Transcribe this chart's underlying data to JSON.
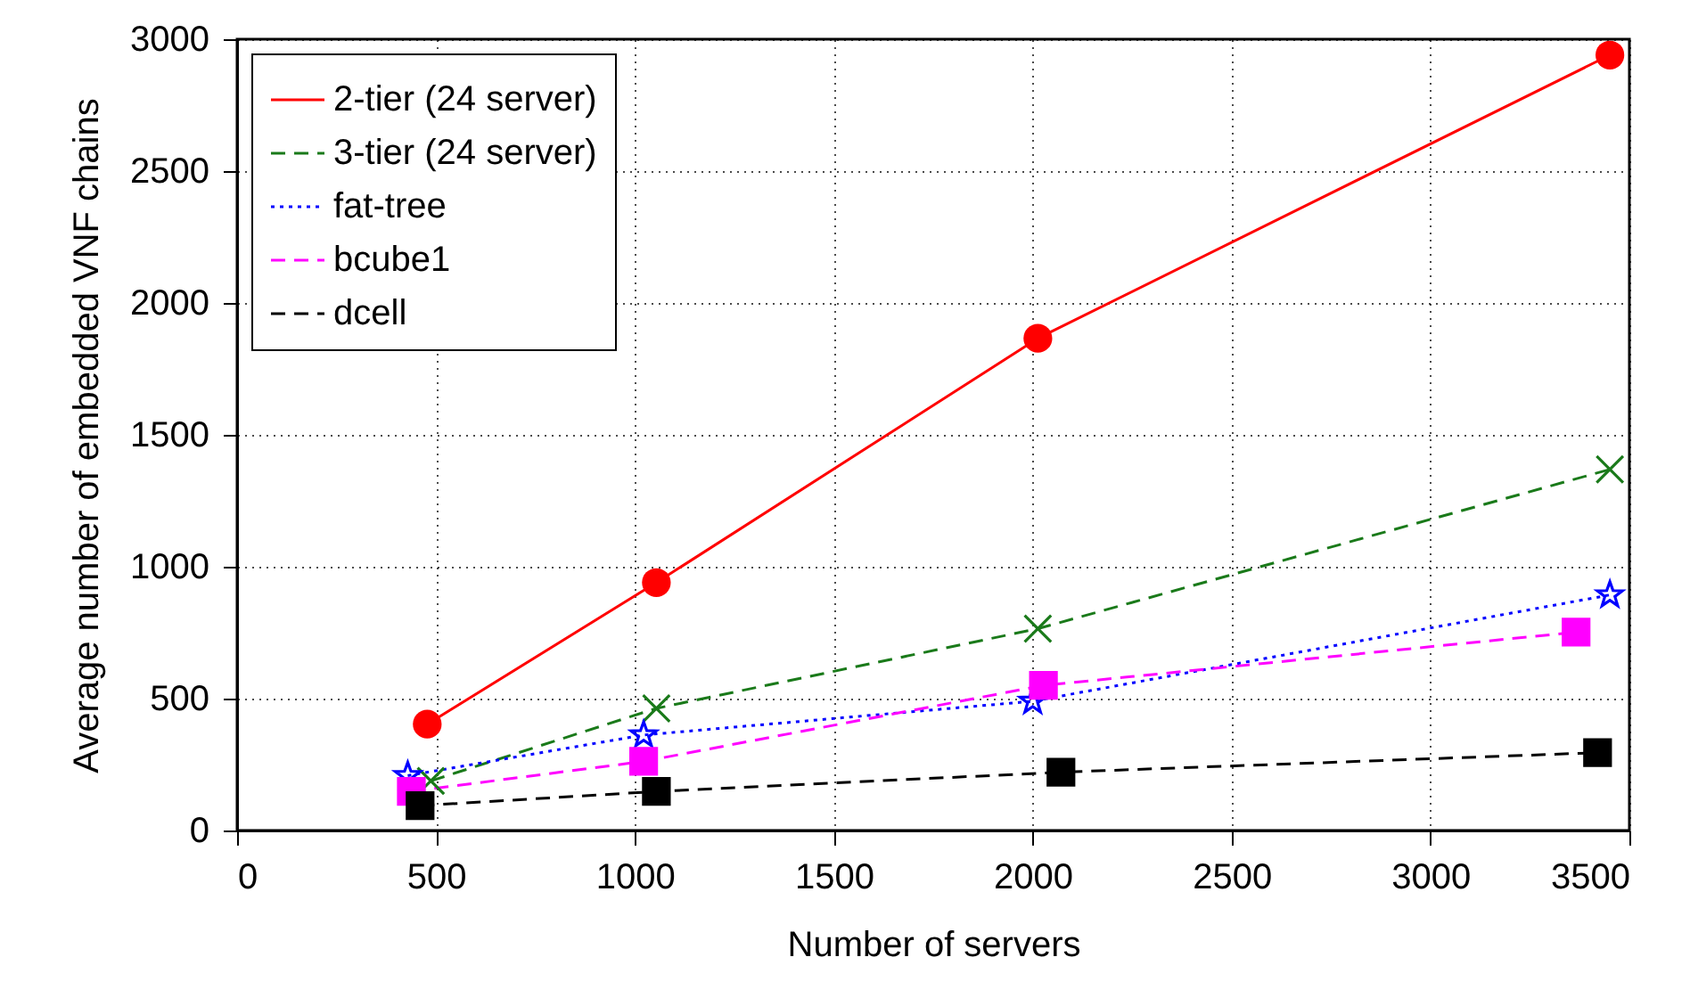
{
  "chart_data": {
    "type": "line",
    "xlabel": "Number of servers",
    "ylabel": "Average number of embedded VNF chains",
    "xlim": [
      0,
      3500
    ],
    "xticks": [
      0,
      500,
      1000,
      1500,
      2000,
      2500,
      3000,
      3500
    ],
    "ylim": [
      0,
      3000
    ],
    "yticks": [
      0,
      500,
      1000,
      1500,
      2000,
      2500,
      3000
    ],
    "grid": true,
    "legend": "top left",
    "series": [
      {
        "name": "2-tier (24 server)",
        "color": "#ff0000",
        "marker": "circle",
        "line_style": "solid",
        "x": [
          478,
          1054,
          2013,
          3451
        ],
        "values": [
          403,
          940,
          1866,
          2940
        ]
      },
      {
        "name": "3-tier (24 server)",
        "color": "#1a7a1a",
        "marker": "cross",
        "line_style": "dashed",
        "x": [
          487,
          1054,
          2013,
          3451
        ],
        "values": [
          188,
          463,
          765,
          1369
        ]
      },
      {
        "name": "fat-tree",
        "color": "#0000ff",
        "marker": "star",
        "line_style": "dotted",
        "x": [
          429,
          1022,
          2000,
          3451
        ],
        "values": [
          208,
          362,
          490,
          893
        ]
      },
      {
        "name": "bcube1",
        "color": "#ff00ff",
        "marker": "square",
        "line_style": "dashed",
        "x": [
          438,
          1022,
          2027,
          3366
        ],
        "values": [
          148,
          262,
          550,
          752
        ]
      },
      {
        "name": "dcell",
        "color": "#000000",
        "marker": "square",
        "line_style": "dashed",
        "x": [
          460,
          1054,
          2071,
          3420
        ],
        "values": [
          94,
          148,
          221,
          295
        ]
      }
    ]
  }
}
